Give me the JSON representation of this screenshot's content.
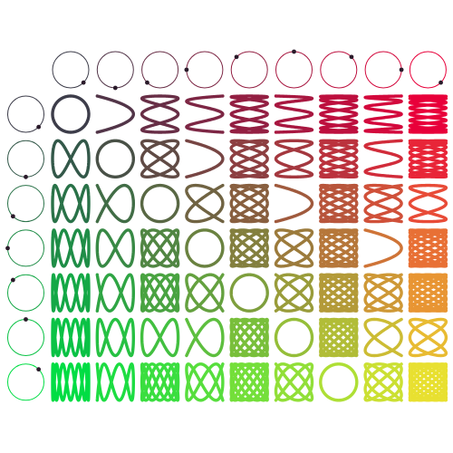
{
  "figure": {
    "title": "",
    "description_visible_text": ""
  },
  "lissajous_table": {
    "column_frequencies": [
      1,
      2,
      3,
      4,
      5,
      6,
      7,
      8,
      9
    ],
    "row_frequencies": [
      1,
      2,
      3,
      4,
      5,
      6,
      7
    ],
    "guide_phase_fraction": 0.875,
    "colors": {
      "top_left": "#3d3d4a",
      "top_right": "#e8003a",
      "bottom_left": "#00dd44",
      "bottom_right": "#e8e030",
      "background": "#ffffff",
      "guide_dot": "#2a1a2a"
    }
  }
}
